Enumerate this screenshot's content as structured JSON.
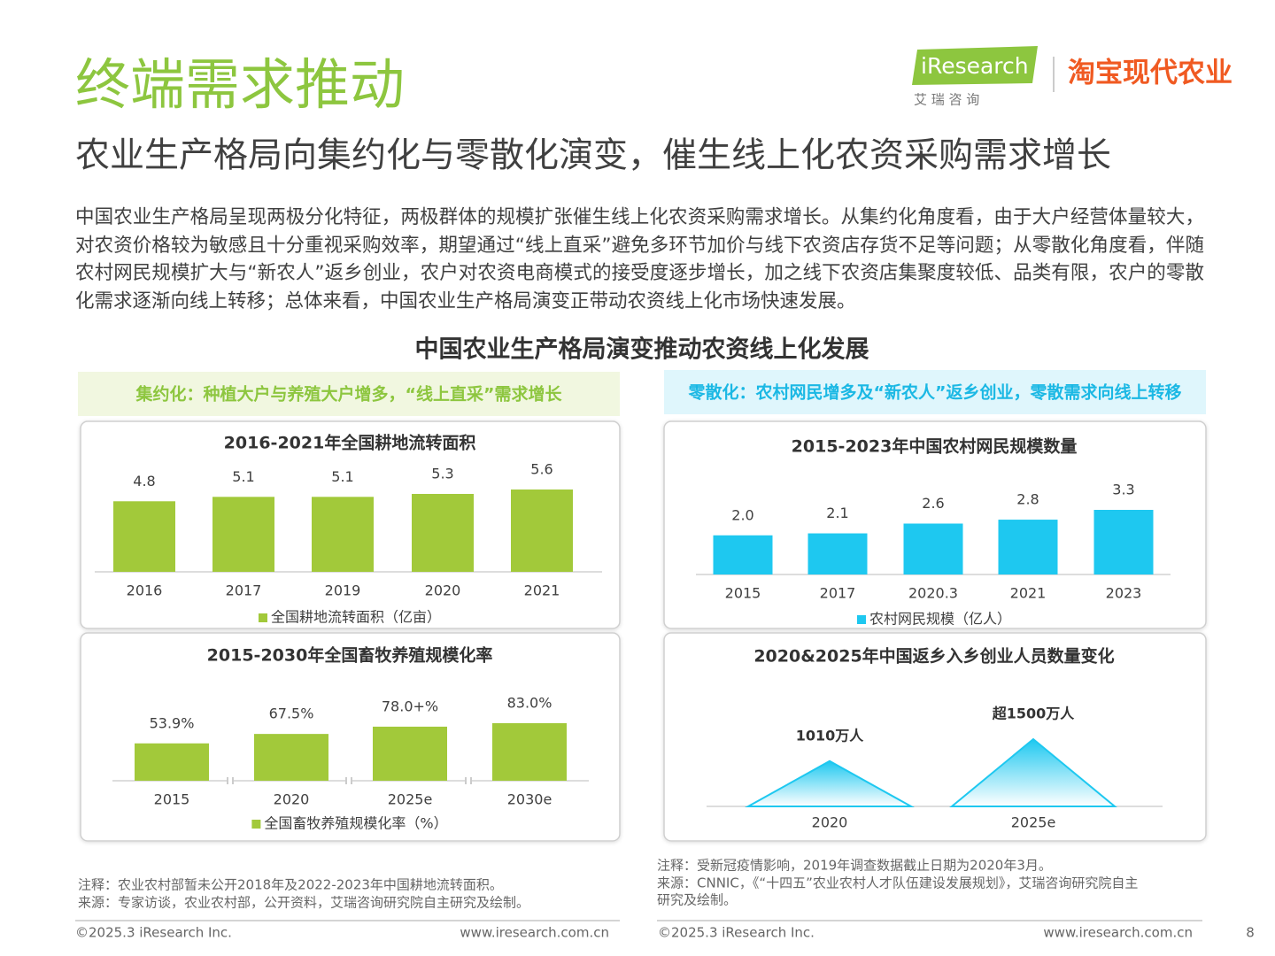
{
  "header": {
    "title": "终端需求推动",
    "subtitle": "农业生产格局向集约化与零散化演变，催生线上化农资采购需求增长",
    "logo": "iResearch",
    "logo_caption": "艾 瑞 咨 询",
    "partner": "淘宝现代农业"
  },
  "intro": "中国农业生产格局呈现两极分化特征，两极群体的规模扩张催生线上化农资采购需求增长。从集约化角度看，由于大户经营体量较大，对农资价格较为敏感且十分重视采购效率，期望通过“线上直采”避免多环节加价与线下农资店存货不足等问题；从零散化角度看，伴随农村网民规模扩大与“新农人”返乡创业，农户对农资电商模式的接受度逐步增长，加之线下农资店集聚度较低、品类有限，农户的零散化需求逐渐向线上转移；总体来看，中国农业生产格局演变正带动农资线上化市场快速发展。",
  "section_title": "中国农业生产格局演变推动农资线上化发展",
  "banners": [
    "集约化：种植大户与养殖大户增多，“线上直采”需求增长",
    "零散化：农村网民增多及“新农人”返乡创业，零散需求向线上转移"
  ],
  "chart_data": [
    {
      "type": "bar",
      "title": "2016-2021年全国耕地流转面积",
      "categories": [
        "2016",
        "2017",
        "2019",
        "2020",
        "2021"
      ],
      "series": [
        {
          "name": "全国耕地流转面积（亿亩）",
          "color": "#a2c93a",
          "values": [
            4.8,
            5.1,
            5.1,
            5.3,
            5.6
          ]
        }
      ]
    },
    {
      "type": "bar",
      "title": "2015-2023年中国农村网民规模数量",
      "categories": [
        "2015",
        "2017",
        "2020.3",
        "2021",
        "2023"
      ],
      "series": [
        {
          "name": "农村网民规模（亿人）",
          "color": "#1ec8f0",
          "values": [
            2.0,
            2.1,
            2.6,
            2.8,
            3.3
          ],
          "value_labels": [
            "2.0",
            "2.1",
            "2.6",
            "2.8",
            "3.3"
          ]
        }
      ]
    },
    {
      "type": "bar",
      "title": "2015-2030年全国畜牧养殖规模化率",
      "categories": [
        "2015",
        "2020",
        "2025e",
        "2030e"
      ],
      "series": [
        {
          "name": "全国畜牧养殖规模化率（%）",
          "color": "#a2c93a",
          "values": [
            53.9,
            67.5,
            78,
            83
          ],
          "value_labels": [
            "53.9%",
            "67.5%",
            "78.0+%",
            "83.0%"
          ]
        }
      ]
    },
    {
      "type": "triangle",
      "title": "2020&2025年中国返乡入乡创业人员数量变化",
      "categories": [
        "2020",
        "2025e"
      ],
      "series": [
        {
          "color": "#1ec8f0",
          "values": [
            1010,
            1500
          ],
          "value_labels": [
            "1010万人",
            "超1500万人"
          ]
        }
      ]
    }
  ],
  "notes": {
    "left": [
      "注释：农业农村部暂未公开2018年及2022-2023年中国耕地流转面积。",
      "来源：专家访谈，农业农村部，公开资料，艾瑞咨询研究院自主研究及绘制。"
    ],
    "right": [
      "注释：受新冠疫情影响，2019年调查数据截止日期为2020年3月。",
      "来源：CNNIC，《“十四五”农业农村人才队伍建设发展规划》，艾瑞咨询研究院自主",
      "研究及绘制。"
    ]
  },
  "footer": {
    "left": {
      "copyright": "©2025.3 iResearch Inc.",
      "url": "www.iresearch.com.cn"
    },
    "right": {
      "copyright": "©2025.3 iResearch Inc.",
      "url": "www.iresearch.com.cn"
    },
    "page": 8
  }
}
